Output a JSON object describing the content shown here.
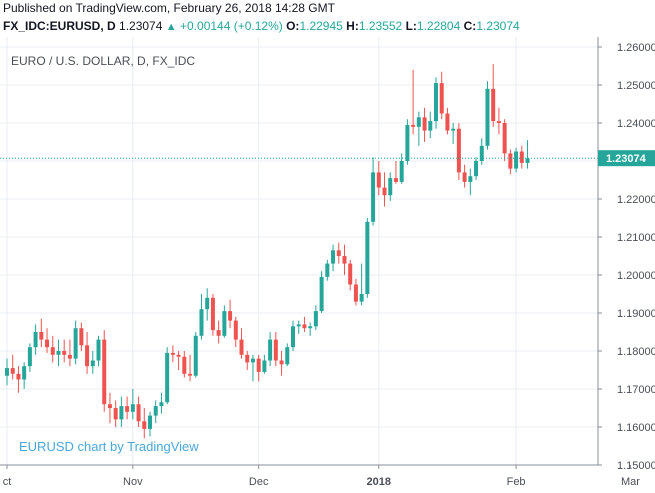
{
  "published": "Published on TradingView.com, February 26, 2018 14:28 GMT",
  "header": {
    "symbol": "FX_IDC:EURUSD, D",
    "last": "1.23074",
    "change": "+0.00144 (+0.12%)",
    "o_label": "O:",
    "o_value": "1.22945",
    "h_label": "H:",
    "h_value": "1.23552",
    "l_label": "L:",
    "l_value": "1.22804",
    "c_label": "C:",
    "c_value": "1.23074"
  },
  "colors": {
    "up": "#26a69a",
    "down": "#ef5350",
    "grid": "#e9edf2",
    "price_line": "#26a69a"
  },
  "chart_data": {
    "type": "candlestick",
    "title": "EURO / U.S. DOLLAR, D, FX_IDC",
    "watermark": "EURUSD chart by TradingView",
    "ylim": [
      1.15,
      1.26
    ],
    "y_ticks": [
      "1.26000",
      "1.25000",
      "1.24000",
      "1.23000",
      "1.22000",
      "1.21000",
      "1.20000",
      "1.19000",
      "1.18000",
      "1.17000",
      "1.16000",
      "1.15000"
    ],
    "x_ticks": [
      {
        "label": "ct",
        "index": 0
      },
      {
        "label": "Nov",
        "index": 22
      },
      {
        "label": "Dec",
        "index": 44
      },
      {
        "label": "2018",
        "index": 65
      },
      {
        "label": "Feb",
        "index": 89
      },
      {
        "label": "Mar",
        "index": 109
      }
    ],
    "last_price": 1.23074,
    "last_price_label": "1.23074",
    "candles": [
      {
        "o": 1.1735,
        "h": 1.178,
        "l": 1.171,
        "c": 1.1755
      },
      {
        "o": 1.1755,
        "h": 1.179,
        "l": 1.1725,
        "c": 1.174
      },
      {
        "o": 1.174,
        "h": 1.176,
        "l": 1.169,
        "c": 1.1725
      },
      {
        "o": 1.1725,
        "h": 1.177,
        "l": 1.17,
        "c": 1.176
      },
      {
        "o": 1.176,
        "h": 1.182,
        "l": 1.1745,
        "c": 1.181
      },
      {
        "o": 1.181,
        "h": 1.187,
        "l": 1.179,
        "c": 1.185
      },
      {
        "o": 1.185,
        "h": 1.1885,
        "l": 1.181,
        "c": 1.183
      },
      {
        "o": 1.183,
        "h": 1.186,
        "l": 1.1795,
        "c": 1.181
      },
      {
        "o": 1.181,
        "h": 1.184,
        "l": 1.177,
        "c": 1.179
      },
      {
        "o": 1.179,
        "h": 1.183,
        "l": 1.176,
        "c": 1.18
      },
      {
        "o": 1.18,
        "h": 1.183,
        "l": 1.177,
        "c": 1.179
      },
      {
        "o": 1.179,
        "h": 1.183,
        "l": 1.176,
        "c": 1.178
      },
      {
        "o": 1.178,
        "h": 1.188,
        "l": 1.1765,
        "c": 1.186
      },
      {
        "o": 1.186,
        "h": 1.1875,
        "l": 1.18,
        "c": 1.1815
      },
      {
        "o": 1.1815,
        "h": 1.185,
        "l": 1.174,
        "c": 1.176
      },
      {
        "o": 1.176,
        "h": 1.18,
        "l": 1.174,
        "c": 1.1775
      },
      {
        "o": 1.1775,
        "h": 1.184,
        "l": 1.176,
        "c": 1.183
      },
      {
        "o": 1.183,
        "h": 1.1855,
        "l": 1.164,
        "c": 1.166
      },
      {
        "o": 1.166,
        "h": 1.169,
        "l": 1.161,
        "c": 1.165
      },
      {
        "o": 1.165,
        "h": 1.167,
        "l": 1.16,
        "c": 1.162
      },
      {
        "o": 1.162,
        "h": 1.168,
        "l": 1.16,
        "c": 1.1655
      },
      {
        "o": 1.1655,
        "h": 1.168,
        "l": 1.162,
        "c": 1.164
      },
      {
        "o": 1.164,
        "h": 1.17,
        "l": 1.162,
        "c": 1.166
      },
      {
        "o": 1.166,
        "h": 1.168,
        "l": 1.16,
        "c": 1.1615
      },
      {
        "o": 1.1615,
        "h": 1.165,
        "l": 1.157,
        "c": 1.1595
      },
      {
        "o": 1.1595,
        "h": 1.164,
        "l": 1.1575,
        "c": 1.163
      },
      {
        "o": 1.163,
        "h": 1.167,
        "l": 1.161,
        "c": 1.1655
      },
      {
        "o": 1.1655,
        "h": 1.169,
        "l": 1.1635,
        "c": 1.1665
      },
      {
        "o": 1.1665,
        "h": 1.181,
        "l": 1.166,
        "c": 1.1795
      },
      {
        "o": 1.1795,
        "h": 1.1815,
        "l": 1.177,
        "c": 1.179
      },
      {
        "o": 1.179,
        "h": 1.18,
        "l": 1.175,
        "c": 1.1785
      },
      {
        "o": 1.1785,
        "h": 1.18,
        "l": 1.173,
        "c": 1.174
      },
      {
        "o": 1.174,
        "h": 1.179,
        "l": 1.172,
        "c": 1.1735
      },
      {
        "o": 1.1735,
        "h": 1.185,
        "l": 1.173,
        "c": 1.184
      },
      {
        "o": 1.184,
        "h": 1.195,
        "l": 1.183,
        "c": 1.191
      },
      {
        "o": 1.191,
        "h": 1.1965,
        "l": 1.188,
        "c": 1.194
      },
      {
        "o": 1.194,
        "h": 1.195,
        "l": 1.184,
        "c": 1.1855
      },
      {
        "o": 1.1855,
        "h": 1.188,
        "l": 1.182,
        "c": 1.184
      },
      {
        "o": 1.184,
        "h": 1.192,
        "l": 1.1835,
        "c": 1.1905
      },
      {
        "o": 1.1905,
        "h": 1.1935,
        "l": 1.186,
        "c": 1.188
      },
      {
        "o": 1.188,
        "h": 1.189,
        "l": 1.181,
        "c": 1.183
      },
      {
        "o": 1.183,
        "h": 1.186,
        "l": 1.178,
        "c": 1.179
      },
      {
        "o": 1.179,
        "h": 1.18,
        "l": 1.175,
        "c": 1.177
      },
      {
        "o": 1.177,
        "h": 1.179,
        "l": 1.172,
        "c": 1.178
      },
      {
        "o": 1.178,
        "h": 1.179,
        "l": 1.172,
        "c": 1.1745
      },
      {
        "o": 1.1745,
        "h": 1.179,
        "l": 1.174,
        "c": 1.1775
      },
      {
        "o": 1.1775,
        "h": 1.185,
        "l": 1.176,
        "c": 1.183
      },
      {
        "o": 1.183,
        "h": 1.185,
        "l": 1.176,
        "c": 1.1775
      },
      {
        "o": 1.1775,
        "h": 1.18,
        "l": 1.1735,
        "c": 1.1765
      },
      {
        "o": 1.1765,
        "h": 1.182,
        "l": 1.176,
        "c": 1.181
      },
      {
        "o": 1.181,
        "h": 1.188,
        "l": 1.18,
        "c": 1.1865
      },
      {
        "o": 1.1865,
        "h": 1.188,
        "l": 1.1845,
        "c": 1.187
      },
      {
        "o": 1.187,
        "h": 1.189,
        "l": 1.185,
        "c": 1.186
      },
      {
        "o": 1.186,
        "h": 1.1875,
        "l": 1.184,
        "c": 1.1865
      },
      {
        "o": 1.1865,
        "h": 1.192,
        "l": 1.1855,
        "c": 1.1905
      },
      {
        "o": 1.1905,
        "h": 1.201,
        "l": 1.19,
        "c": 1.1995
      },
      {
        "o": 1.1995,
        "h": 1.204,
        "l": 1.1985,
        "c": 1.203
      },
      {
        "o": 1.203,
        "h": 1.208,
        "l": 1.201,
        "c": 1.2065
      },
      {
        "o": 1.2065,
        "h": 1.2085,
        "l": 1.203,
        "c": 1.205
      },
      {
        "o": 1.205,
        "h": 1.208,
        "l": 1.2,
        "c": 1.203
      },
      {
        "o": 1.203,
        "h": 1.204,
        "l": 1.196,
        "c": 1.1975
      },
      {
        "o": 1.1975,
        "h": 1.199,
        "l": 1.192,
        "c": 1.193
      },
      {
        "o": 1.193,
        "h": 1.203,
        "l": 1.192,
        "c": 1.195
      },
      {
        "o": 1.195,
        "h": 1.215,
        "l": 1.194,
        "c": 1.214
      },
      {
        "o": 1.214,
        "h": 1.231,
        "l": 1.213,
        "c": 1.227
      },
      {
        "o": 1.227,
        "h": 1.23,
        "l": 1.221,
        "c": 1.223
      },
      {
        "o": 1.223,
        "h": 1.227,
        "l": 1.218,
        "c": 1.221
      },
      {
        "o": 1.221,
        "h": 1.227,
        "l": 1.2195,
        "c": 1.2255
      },
      {
        "o": 1.2255,
        "h": 1.23,
        "l": 1.224,
        "c": 1.2245
      },
      {
        "o": 1.2245,
        "h": 1.232,
        "l": 1.224,
        "c": 1.23
      },
      {
        "o": 1.23,
        "h": 1.241,
        "l": 1.229,
        "c": 1.2395
      },
      {
        "o": 1.2395,
        "h": 1.254,
        "l": 1.237,
        "c": 1.239
      },
      {
        "o": 1.239,
        "h": 1.243,
        "l": 1.234,
        "c": 1.2415
      },
      {
        "o": 1.2415,
        "h": 1.244,
        "l": 1.235,
        "c": 1.238
      },
      {
        "o": 1.238,
        "h": 1.243,
        "l": 1.236,
        "c": 1.2405
      },
      {
        "o": 1.2405,
        "h": 1.252,
        "l": 1.2385,
        "c": 1.2505
      },
      {
        "o": 1.2505,
        "h": 1.2535,
        "l": 1.241,
        "c": 1.2425
      },
      {
        "o": 1.2425,
        "h": 1.244,
        "l": 1.237,
        "c": 1.238
      },
      {
        "o": 1.238,
        "h": 1.24,
        "l": 1.2345,
        "c": 1.2385
      },
      {
        "o": 1.2385,
        "h": 1.24,
        "l": 1.225,
        "c": 1.227
      },
      {
        "o": 1.227,
        "h": 1.229,
        "l": 1.223,
        "c": 1.2245
      },
      {
        "o": 1.2245,
        "h": 1.228,
        "l": 1.221,
        "c": 1.226
      },
      {
        "o": 1.226,
        "h": 1.231,
        "l": 1.225,
        "c": 1.23
      },
      {
        "o": 1.23,
        "h": 1.236,
        "l": 1.229,
        "c": 1.234
      },
      {
        "o": 1.234,
        "h": 1.251,
        "l": 1.233,
        "c": 1.249
      },
      {
        "o": 1.249,
        "h": 1.2555,
        "l": 1.239,
        "c": 1.2405
      },
      {
        "o": 1.2405,
        "h": 1.244,
        "l": 1.237,
        "c": 1.24
      },
      {
        "o": 1.24,
        "h": 1.241,
        "l": 1.23,
        "c": 1.232
      },
      {
        "o": 1.232,
        "h": 1.233,
        "l": 1.2265,
        "c": 1.228
      },
      {
        "o": 1.228,
        "h": 1.2335,
        "l": 1.227,
        "c": 1.2325
      },
      {
        "o": 1.2325,
        "h": 1.234,
        "l": 1.228,
        "c": 1.2295
      },
      {
        "o": 1.2295,
        "h": 1.2355,
        "l": 1.228,
        "c": 1.2307
      }
    ]
  }
}
